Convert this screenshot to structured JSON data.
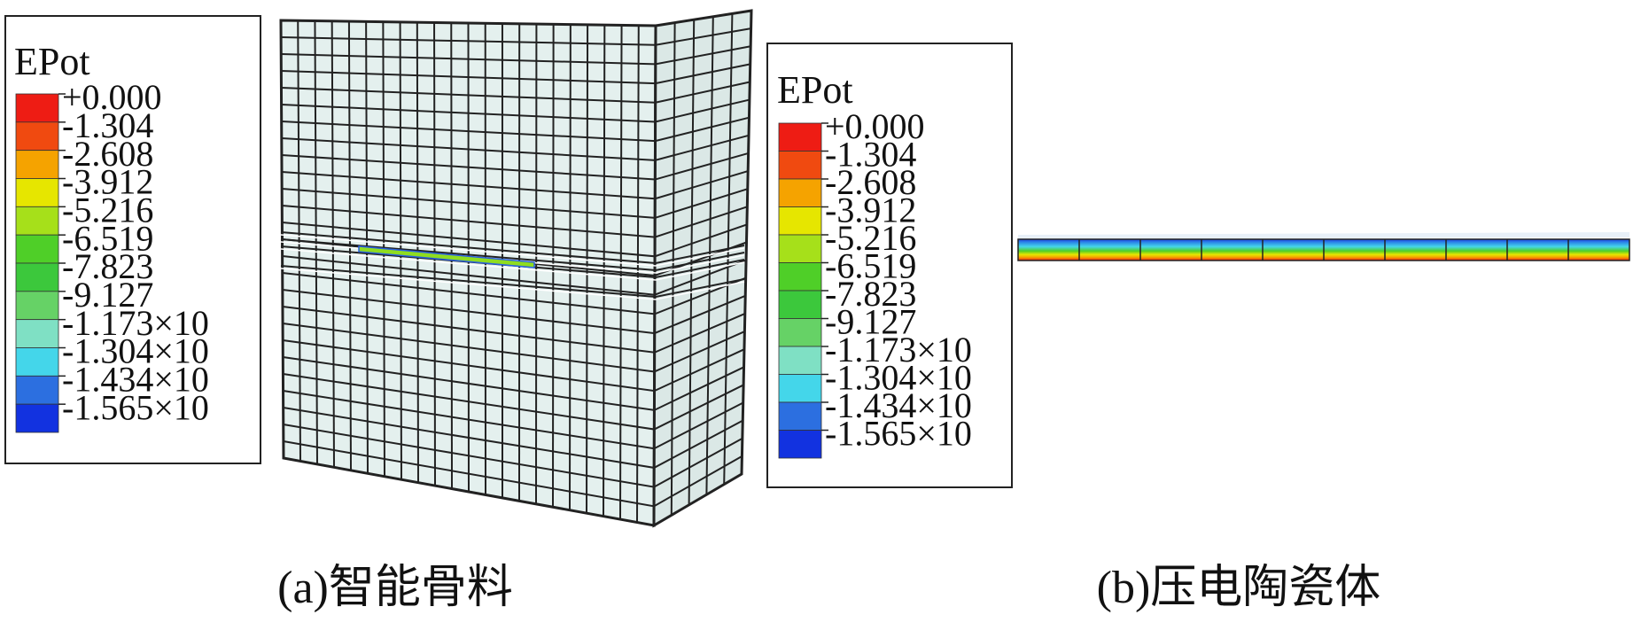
{
  "legend_colors": [
    "#ee1c14",
    "#f04a10",
    "#f5a300",
    "#e6e600",
    "#a6e01a",
    "#4fcf28",
    "#3cc83c",
    "#66d266",
    "#7fe0c4",
    "#44d6ea",
    "#2c6fe0",
    "#1232e0"
  ],
  "panels": [
    {
      "legend": {
        "title": "EPot",
        "labels": [
          "+0.000",
          "-1.304",
          "-2.608",
          "-3.912",
          "-5.216",
          "-6.519",
          "-7.823",
          "-9.127",
          "-1.173×10",
          "-1.304×10",
          "-1.434×10",
          "-1.565×10"
        ]
      },
      "caption": "(a)智能骨料"
    },
    {
      "legend": {
        "title": "EPot",
        "labels": [
          "+0.000",
          "-1.304",
          "-2.608",
          "-3.912",
          "-5.216",
          "-6.519",
          "-7.823",
          "-9.127",
          "-1.173×10",
          "-1.304×10",
          "-1.434×10",
          "-1.565×10"
        ]
      },
      "caption": "(b)压电陶瓷体"
    }
  ]
}
